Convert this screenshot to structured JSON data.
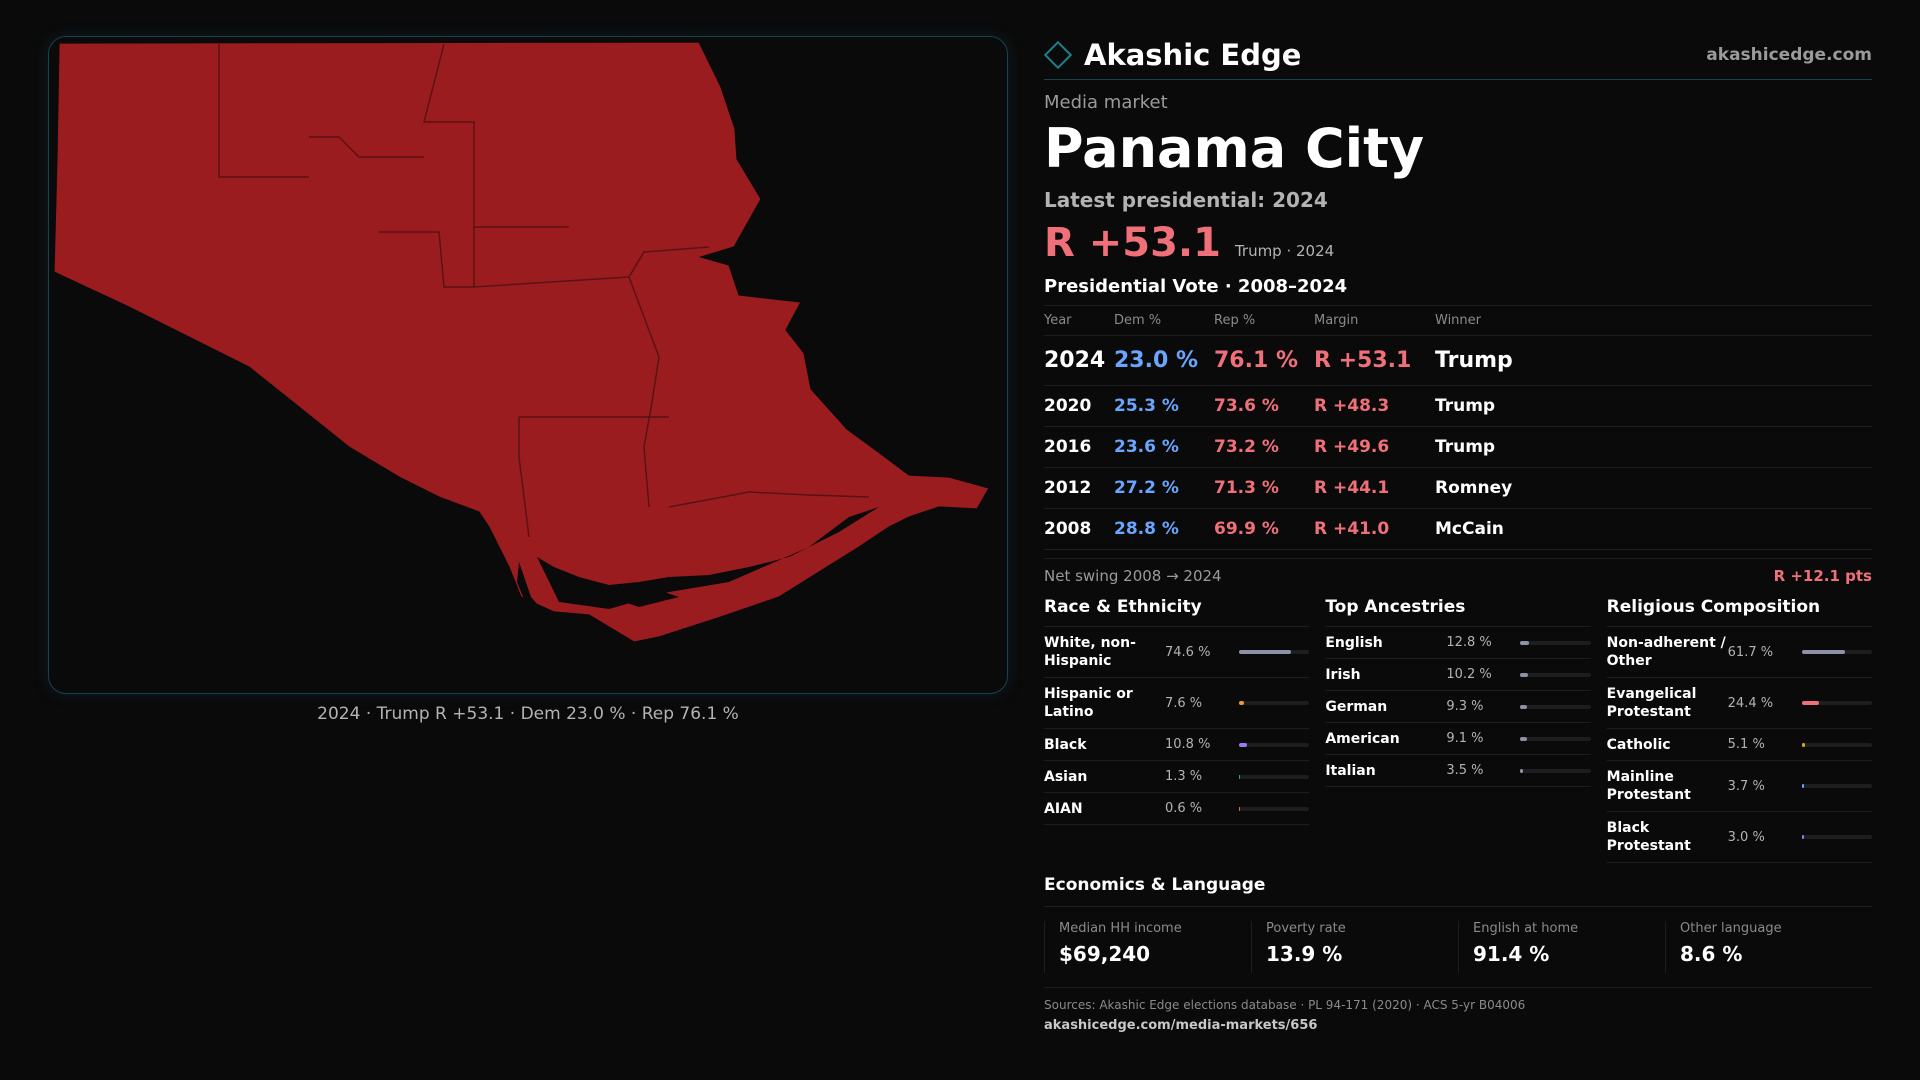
{
  "header": {
    "brand": "Akashic Edge",
    "site": "akashicedge.com"
  },
  "market": {
    "kicker": "Media market",
    "name": "Panama City",
    "latest_label": "Latest presidential: 2024",
    "latest_margin": "R +53.1",
    "latest_sub": "Trump · 2024"
  },
  "map": {
    "caption": "2024 · Trump R +53.1 · Dem 23.0 % · Rep 76.1 %",
    "fill_color": "#9b1c1f",
    "border_color": "#17434a"
  },
  "vote": {
    "title": "Presidential Vote · 2008–2024",
    "columns": [
      "Year",
      "Dem %",
      "Rep %",
      "Margin",
      "Winner"
    ],
    "rows": [
      {
        "year": "2024",
        "dem": "23.0 %",
        "rep": "76.1 %",
        "margin": "R +53.1",
        "winner": "Trump"
      },
      {
        "year": "2020",
        "dem": "25.3 %",
        "rep": "73.6 %",
        "margin": "R +48.3",
        "winner": "Trump"
      },
      {
        "year": "2016",
        "dem": "23.6 %",
        "rep": "73.2 %",
        "margin": "R +49.6",
        "winner": "Trump"
      },
      {
        "year": "2012",
        "dem": "27.2 %",
        "rep": "71.3 %",
        "margin": "R +44.1",
        "winner": "Romney"
      },
      {
        "year": "2008",
        "dem": "28.8 %",
        "rep": "69.9 %",
        "margin": "R +41.0",
        "winner": "McCain"
      }
    ],
    "swing_label": "Net swing 2008 → 2024",
    "swing_value": "R +12.1 pts"
  },
  "race": {
    "title": "Race & Ethnicity",
    "items": [
      {
        "label": "White, non-Hispanic",
        "pct": "74.6 %",
        "value": 74.6,
        "color": "#8c93a8"
      },
      {
        "label": "Hispanic or Latino",
        "pct": "7.6 %",
        "value": 7.6,
        "color": "#e0a030"
      },
      {
        "label": "Black",
        "pct": "10.8 %",
        "value": 10.8,
        "color": "#9b7cf0"
      },
      {
        "label": "Asian",
        "pct": "1.3 %",
        "value": 1.3,
        "color": "#2fa8a0"
      },
      {
        "label": "AIAN",
        "pct": "0.6 %",
        "value": 0.6,
        "color": "#d07a3a"
      }
    ]
  },
  "ancestry": {
    "title": "Top Ancestries",
    "items": [
      {
        "label": "English",
        "pct": "12.8 %",
        "value": 12.8,
        "color": "#8c93a8"
      },
      {
        "label": "Irish",
        "pct": "10.2 %",
        "value": 10.2,
        "color": "#8c93a8"
      },
      {
        "label": "German",
        "pct": "9.3 %",
        "value": 9.3,
        "color": "#8c93a8"
      },
      {
        "label": "American",
        "pct": "9.1 %",
        "value": 9.1,
        "color": "#8c93a8"
      },
      {
        "label": "Italian",
        "pct": "3.5 %",
        "value": 3.5,
        "color": "#8c93a8"
      }
    ]
  },
  "religion": {
    "title": "Religious Composition",
    "items": [
      {
        "label": "Non-adherent / Other",
        "pct": "61.7 %",
        "value": 61.7,
        "color": "#8c93a8"
      },
      {
        "label": "Evangelical Protestant",
        "pct": "24.4 %",
        "value": 24.4,
        "color": "#f0707a"
      },
      {
        "label": "Catholic",
        "pct": "5.1 %",
        "value": 5.1,
        "color": "#e0a030"
      },
      {
        "label": "Mainline Protestant",
        "pct": "3.7 %",
        "value": 3.7,
        "color": "#6aa6ff"
      },
      {
        "label": "Black Protestant",
        "pct": "3.0 %",
        "value": 3.0,
        "color": "#9b7cf0"
      }
    ]
  },
  "economics": {
    "title": "Economics & Language",
    "cells": [
      {
        "label": "Median HH income",
        "value": "$69,240"
      },
      {
        "label": "Poverty rate",
        "value": "13.9 %"
      },
      {
        "label": "English at home",
        "value": "91.4 %"
      },
      {
        "label": "Other language",
        "value": "8.6 %"
      }
    ]
  },
  "sources": {
    "text": "Sources: Akashic Edge elections database · PL 94-171 (2020) · ACS 5-yr B04006",
    "url": "akashicedge.com/media-markets/656"
  }
}
